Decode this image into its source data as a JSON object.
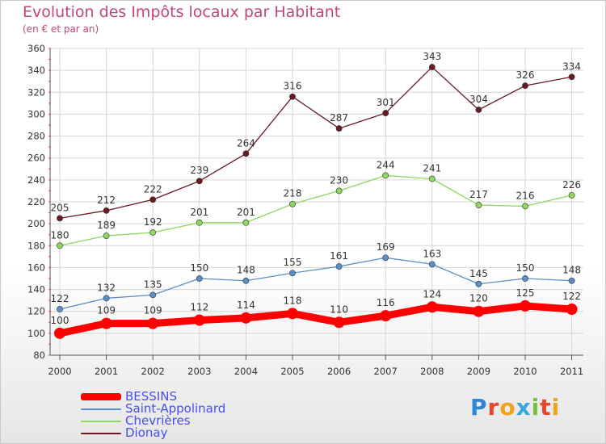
{
  "title": "Evolution des Impôts locaux par Habitant",
  "subtitle": "(en € et par an)",
  "logo": {
    "text": [
      "P",
      "r",
      "o",
      "x",
      "i",
      "t",
      "i"
    ],
    "colors": [
      "#2f86d6",
      "#e8452f",
      "#f3a21b",
      "#3aa6e0",
      "#76c043",
      "#e8452f",
      "#f3a21b"
    ]
  },
  "chart_data": {
    "type": "line",
    "categories": [
      "2000",
      "2001",
      "2002",
      "2003",
      "2004",
      "2005",
      "2006",
      "2007",
      "2008",
      "2009",
      "2010",
      "2011"
    ],
    "ylim": [
      80,
      360
    ],
    "yticks": [
      80,
      100,
      120,
      140,
      160,
      180,
      200,
      220,
      240,
      260,
      280,
      300,
      320,
      340,
      360
    ],
    "grid": true,
    "legend_position": "bottom-left",
    "series": [
      {
        "name": "BESSINS",
        "color": "#ff0000",
        "emphasis": true,
        "values": [
          100,
          109,
          109,
          112,
          114,
          118,
          110,
          116,
          124,
          120,
          125,
          122
        ]
      },
      {
        "name": "Saint-Appolinard",
        "color": "#5b8fc8",
        "emphasis": false,
        "values": [
          122,
          132,
          135,
          150,
          148,
          155,
          161,
          169,
          163,
          145,
          150,
          148
        ]
      },
      {
        "name": "Chevrières",
        "color": "#8fd860",
        "emphasis": false,
        "values": [
          180,
          189,
          192,
          201,
          201,
          218,
          230,
          244,
          241,
          217,
          216,
          226
        ]
      },
      {
        "name": "Dionay",
        "color": "#6a1a22",
        "emphasis": false,
        "values": [
          205,
          212,
          222,
          239,
          264,
          316,
          287,
          301,
          343,
          304,
          326,
          334
        ]
      }
    ]
  }
}
